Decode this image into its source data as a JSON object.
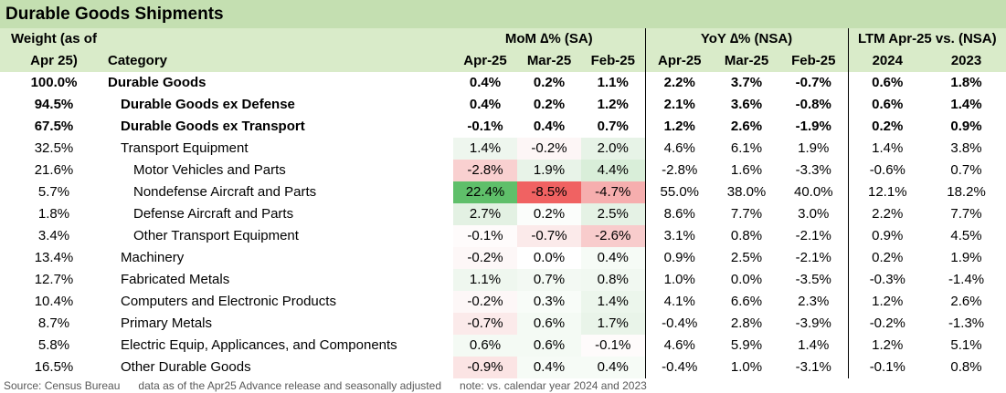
{
  "title": "Durable Goods Shipments",
  "header": {
    "weight_line1": "Weight (as of",
    "weight_line2": "Apr 25)",
    "category": "Category",
    "mom_group": "MoM ∆% (SA)",
    "yoy_group": "YoY ∆% (NSA)",
    "ltm_group": "LTM Apr-25 vs. (NSA)",
    "mom_cols": [
      "Apr-25",
      "Mar-25",
      "Feb-25"
    ],
    "yoy_cols": [
      "Apr-25",
      "Mar-25",
      "Feb-25"
    ],
    "ltm_cols": [
      "2024",
      "2023"
    ]
  },
  "rows": [
    {
      "weight": "100.0%",
      "category": "Durable Goods",
      "level": 0,
      "bold": true,
      "mom": [
        "0.4%",
        "0.2%",
        "1.1%"
      ],
      "mom_bg": [
        "",
        "",
        ""
      ],
      "yoy": [
        "2.2%",
        "3.7%",
        "-0.7%"
      ],
      "ltm": [
        "0.6%",
        "1.8%"
      ]
    },
    {
      "weight": "94.5%",
      "category": "Durable Goods ex Defense",
      "level": 1,
      "bold": true,
      "mom": [
        "0.4%",
        "0.2%",
        "1.2%"
      ],
      "mom_bg": [
        "",
        "",
        ""
      ],
      "yoy": [
        "2.1%",
        "3.6%",
        "-0.8%"
      ],
      "ltm": [
        "0.6%",
        "1.4%"
      ]
    },
    {
      "weight": "67.5%",
      "category": "Durable Goods ex Transport",
      "level": 1,
      "bold": true,
      "mom": [
        "-0.1%",
        "0.4%",
        "0.7%"
      ],
      "mom_bg": [
        "",
        "",
        ""
      ],
      "yoy": [
        "1.2%",
        "2.6%",
        "-1.9%"
      ],
      "ltm": [
        "0.2%",
        "0.9%"
      ]
    },
    {
      "weight": "32.5%",
      "category": "Transport Equipment",
      "level": 1,
      "bold": false,
      "mom": [
        "1.4%",
        "-0.2%",
        "2.0%"
      ],
      "mom_bg": [
        "#eef6ee",
        "#fdf6f6",
        "#e7f3e7"
      ],
      "yoy": [
        "4.6%",
        "6.1%",
        "1.9%"
      ],
      "ltm": [
        "1.4%",
        "3.8%"
      ]
    },
    {
      "weight": "21.6%",
      "category": "Motor Vehicles and Parts",
      "level": 2,
      "bold": false,
      "mom": [
        "-2.8%",
        "1.9%",
        "4.4%"
      ],
      "mom_bg": [
        "#f9d0d0",
        "#e8f3e8",
        "#d9eed9"
      ],
      "yoy": [
        "-2.8%",
        "1.6%",
        "-3.3%"
      ],
      "ltm": [
        "-0.6%",
        "0.7%"
      ]
    },
    {
      "weight": "5.7%",
      "category": "Nondefense Aircraft and Parts",
      "level": 2,
      "bold": false,
      "mom": [
        "22.4%",
        "-8.5%",
        "-4.7%"
      ],
      "mom_bg": [
        "#5fbf6a",
        "#f06262",
        "#f6aeae"
      ],
      "yoy": [
        "55.0%",
        "38.0%",
        "40.0%"
      ],
      "ltm": [
        "12.1%",
        "18.2%"
      ]
    },
    {
      "weight": "1.8%",
      "category": "Defense Aircraft and Parts",
      "level": 2,
      "bold": false,
      "mom": [
        "2.7%",
        "0.2%",
        "2.5%"
      ],
      "mom_bg": [
        "#e3f1e3",
        "#fbfdfb",
        "#e5f2e5"
      ],
      "yoy": [
        "8.6%",
        "7.7%",
        "3.0%"
      ],
      "ltm": [
        "2.2%",
        "7.7%"
      ]
    },
    {
      "weight": "3.4%",
      "category": "Other Transport Equipment",
      "level": 2,
      "bold": false,
      "mom": [
        "-0.1%",
        "-0.7%",
        "-2.6%"
      ],
      "mom_bg": [
        "#fefbfb",
        "#fbeaea",
        "#f8cccc"
      ],
      "yoy": [
        "3.1%",
        "0.8%",
        "-2.1%"
      ],
      "ltm": [
        "0.9%",
        "4.5%"
      ]
    },
    {
      "weight": "13.4%",
      "category": "Machinery",
      "level": 1,
      "bold": false,
      "mom": [
        "-0.2%",
        "0.0%",
        "0.4%"
      ],
      "mom_bg": [
        "#fdf7f7",
        "#ffffff",
        "#f6fbf6"
      ],
      "yoy": [
        "0.9%",
        "2.5%",
        "-2.1%"
      ],
      "ltm": [
        "0.2%",
        "1.9%"
      ]
    },
    {
      "weight": "12.7%",
      "category": "Fabricated Metals",
      "level": 1,
      "bold": false,
      "mom": [
        "1.1%",
        "0.7%",
        "0.8%"
      ],
      "mom_bg": [
        "#eff7ef",
        "#f3f9f3",
        "#f1f8f1"
      ],
      "yoy": [
        "1.0%",
        "0.0%",
        "-3.5%"
      ],
      "ltm": [
        "-0.3%",
        "-1.4%"
      ]
    },
    {
      "weight": "10.4%",
      "category": "Computers and Electronic Products",
      "level": 1,
      "bold": false,
      "mom": [
        "-0.2%",
        "0.3%",
        "1.4%"
      ],
      "mom_bg": [
        "#fdf7f7",
        "#f8fcf8",
        "#ecf6ec"
      ],
      "yoy": [
        "4.1%",
        "6.6%",
        "2.3%"
      ],
      "ltm": [
        "1.2%",
        "2.6%"
      ]
    },
    {
      "weight": "8.7%",
      "category": "Primary Metals",
      "level": 1,
      "bold": false,
      "mom": [
        "-0.7%",
        "0.6%",
        "1.7%"
      ],
      "mom_bg": [
        "#fbeaea",
        "#f4faf4",
        "#e9f4e9"
      ],
      "yoy": [
        "-0.4%",
        "2.8%",
        "-3.9%"
      ],
      "ltm": [
        "-0.2%",
        "-1.3%"
      ]
    },
    {
      "weight": "5.8%",
      "category": "Electric Equip, Applicances, and Components",
      "level": 1,
      "bold": false,
      "mom": [
        "0.6%",
        "0.6%",
        "-0.1%"
      ],
      "mom_bg": [
        "#f4faf4",
        "#f4faf4",
        "#fefbfb"
      ],
      "yoy": [
        "4.6%",
        "5.9%",
        "1.4%"
      ],
      "ltm": [
        "1.2%",
        "5.1%"
      ]
    },
    {
      "weight": "16.5%",
      "category": "Other Durable Goods",
      "level": 1,
      "bold": false,
      "mom": [
        "-0.9%",
        "0.4%",
        "0.4%"
      ],
      "mom_bg": [
        "#fbe4e4",
        "#f6fbf6",
        "#f6fbf6"
      ],
      "yoy": [
        "-0.4%",
        "1.0%",
        "-3.1%"
      ],
      "ltm": [
        "-0.1%",
        "0.8%"
      ]
    }
  ],
  "footer": {
    "source": "Source: Census Bureau",
    "data_note": "data as of the Apr25 Advance release and seasonally adjusted",
    "note": "note: vs. calendar year 2024 and 2023"
  }
}
